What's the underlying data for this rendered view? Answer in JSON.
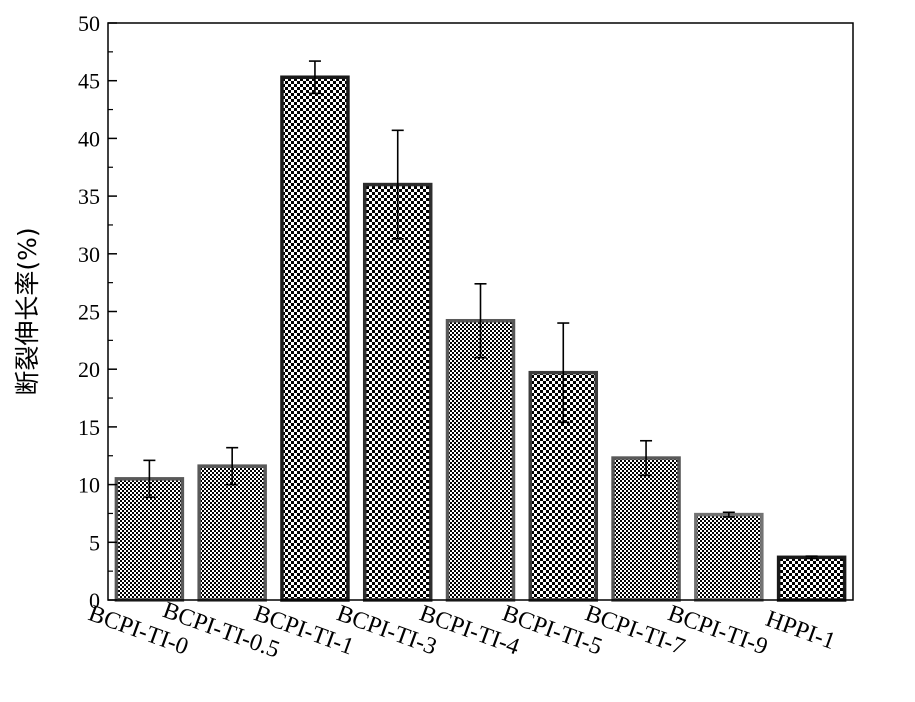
{
  "chart_data": {
    "type": "bar",
    "title": "",
    "xlabel": "",
    "ylabel": "断裂伸长率(%)",
    "ylim": [
      0,
      50
    ],
    "yticks": [
      0,
      5,
      10,
      15,
      20,
      25,
      30,
      35,
      40,
      45,
      50
    ],
    "grid": false,
    "legend": "none",
    "categories": [
      "BCPI-TI-0",
      "BCPI-TI-0.5",
      "BCPI-TI-1",
      "BCPI-TI-3",
      "BCPI-TI-4",
      "BCPI-TI-5",
      "BCPI-TI-7",
      "BCPI-TI-9",
      "HPPI-1"
    ],
    "values": [
      10.5,
      11.6,
      45.3,
      36.0,
      24.2,
      19.7,
      12.3,
      7.4,
      3.7
    ],
    "errors": [
      1.6,
      1.6,
      1.4,
      4.7,
      3.2,
      4.3,
      1.5,
      0.2,
      0.1
    ],
    "bar_colors": [
      "#595959",
      "#595959",
      "#1a1a1a",
      "#2e2e2e",
      "#595959",
      "#3d3d3d",
      "#595959",
      "#737373",
      "#1a1a1a"
    ]
  }
}
